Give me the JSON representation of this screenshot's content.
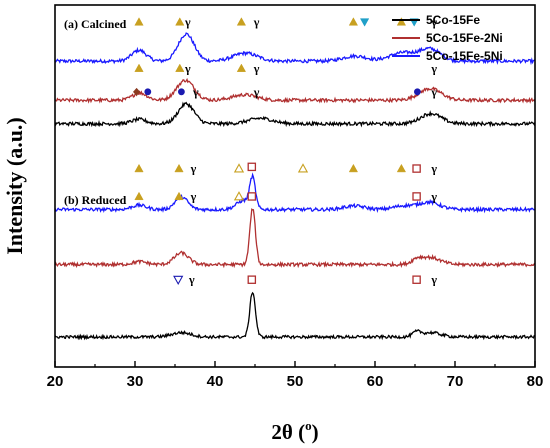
{
  "chart_data": {
    "type": "line",
    "xlabel": "2θ (°)",
    "xlabel_main": "2θ (",
    "xlabel_sup": "o",
    "xlabel_close": ")",
    "ylabel": "Intensity (a.u.)",
    "xlim": [
      20,
      80
    ],
    "xticks": [
      20,
      30,
      40,
      50,
      60,
      70,
      80
    ],
    "yticks_shown": false,
    "grid": false,
    "legend_position": "top-right",
    "panels": [
      {
        "label": "(a) Calcined"
      },
      {
        "label": "(b) Reduced"
      }
    ],
    "legend": [
      {
        "name": "5Co-15Fe",
        "color": "#000000"
      },
      {
        "name": "5Co-15Fe-2Ni",
        "color": "#b03030"
      },
      {
        "name": "5Co-15Fe-5Ni",
        "color": "#1a1aff"
      }
    ],
    "series": [
      {
        "name": "5Co-15Fe-5Ni",
        "panel": "calcined",
        "color": "#1a1aff",
        "baseline": 0.845,
        "noise": 0.0045,
        "peaks": [
          [
            30.5,
            0.03,
            0.9
          ],
          [
            36.4,
            0.075,
            1.0
          ],
          [
            43.8,
            0.022,
            1.5
          ],
          [
            57.5,
            0.014,
            1.5
          ],
          [
            63.3,
            0.022,
            1.5
          ],
          [
            66.5,
            0.02,
            1.4
          ],
          [
            67.2,
            0.015,
            1.2
          ]
        ],
        "markers": [
          {
            "x": 30.5,
            "symbol": "triangle-up",
            "color": "#c8a020"
          },
          {
            "x": 35.6,
            "symbol": "triangle-up",
            "color": "#c8a020"
          },
          {
            "x": 36.6,
            "symbol": "gamma"
          },
          {
            "x": 43.3,
            "symbol": "triangle-up",
            "color": "#c8a020"
          },
          {
            "x": 45.2,
            "symbol": "gamma"
          },
          {
            "x": 57.3,
            "symbol": "triangle-up",
            "color": "#c8a020"
          },
          {
            "x": 58.7,
            "symbol": "triangle-down",
            "color": "#20a0c8"
          },
          {
            "x": 63.3,
            "symbol": "triangle-up",
            "color": "#c8a020"
          },
          {
            "x": 64.9,
            "symbol": "triangle-down",
            "color": "#20a0c8"
          },
          {
            "x": 67.4,
            "symbol": "gamma"
          }
        ]
      },
      {
        "name": "5Co-15Fe-2Ni",
        "panel": "calcined",
        "color": "#b03030",
        "baseline": 0.737,
        "noise": 0.0045,
        "peaks": [
          [
            30.6,
            0.02,
            0.9
          ],
          [
            36.3,
            0.055,
            1.1
          ],
          [
            43.7,
            0.015,
            1.5
          ],
          [
            66.9,
            0.032,
            1.4
          ]
        ],
        "markers": [
          {
            "x": 30.5,
            "symbol": "triangle-up",
            "color": "#c8a020"
          },
          {
            "x": 35.6,
            "symbol": "triangle-up",
            "color": "#c8a020"
          },
          {
            "x": 36.6,
            "symbol": "gamma"
          },
          {
            "x": 43.3,
            "symbol": "triangle-up",
            "color": "#c8a020"
          },
          {
            "x": 45.2,
            "symbol": "gamma"
          },
          {
            "x": 67.4,
            "symbol": "gamma"
          }
        ]
      },
      {
        "name": "5Co-15Fe",
        "panel": "calcined",
        "color": "#000000",
        "baseline": 0.672,
        "noise": 0.0045,
        "peaks": [
          [
            30.5,
            0.012,
            0.9
          ],
          [
            36.4,
            0.055,
            1.0
          ],
          [
            45.7,
            0.015,
            1.5
          ],
          [
            67.0,
            0.028,
            1.3
          ]
        ],
        "markers": [
          {
            "x": 30.2,
            "symbol": "diamond",
            "color": "#8a3a20"
          },
          {
            "x": 31.6,
            "symbol": "circle",
            "color": "#1a1ab0"
          },
          {
            "x": 35.8,
            "symbol": "circle",
            "color": "#1a1ab0"
          },
          {
            "x": 37.6,
            "symbol": "gamma"
          },
          {
            "x": 45.2,
            "symbol": "gamma"
          },
          {
            "x": 65.3,
            "symbol": "circle",
            "color": "#1a1ab0"
          },
          {
            "x": 67.4,
            "symbol": "gamma"
          }
        ]
      },
      {
        "name": "5Co-15Fe-5Ni",
        "panel": "reduced",
        "color": "#1a1aff",
        "baseline": 0.435,
        "noise": 0.0045,
        "peaks": [
          [
            30.5,
            0.012,
            0.9
          ],
          [
            35.8,
            0.035,
            0.8
          ],
          [
            43.6,
            0.025,
            0.9
          ],
          [
            44.7,
            0.08,
            0.35
          ],
          [
            57.4,
            0.01,
            1.3
          ],
          [
            63.6,
            0.01,
            1.3
          ],
          [
            66.8,
            0.02,
            1.3
          ]
        ],
        "markers": [
          {
            "x": 30.5,
            "symbol": "triangle-up",
            "color": "#c8a020"
          },
          {
            "x": 35.5,
            "symbol": "triangle-up",
            "color": "#c8a020"
          },
          {
            "x": 37.3,
            "symbol": "gamma"
          },
          {
            "x": 43.0,
            "symbol": "triangle-open",
            "color": "#c8a020"
          },
          {
            "x": 44.6,
            "symbol": "square-open",
            "color": "#b03030"
          },
          {
            "x": 51.0,
            "symbol": "triangle-open",
            "color": "#c8a020"
          },
          {
            "x": 57.3,
            "symbol": "triangle-up",
            "color": "#c8a020"
          },
          {
            "x": 63.3,
            "symbol": "triangle-up",
            "color": "#c8a020"
          },
          {
            "x": 65.2,
            "symbol": "square-open",
            "color": "#b03030"
          },
          {
            "x": 67.4,
            "symbol": "gamma"
          }
        ]
      },
      {
        "name": "5Co-15Fe-2Ni",
        "panel": "reduced",
        "color": "#b03030",
        "baseline": 0.283,
        "noise": 0.0045,
        "peaks": [
          [
            30.6,
            0.008,
            0.9
          ],
          [
            35.8,
            0.032,
            0.9
          ],
          [
            44.7,
            0.155,
            0.35
          ],
          [
            65.2,
            0.01,
            0.6
          ],
          [
            66.8,
            0.02,
            1.3
          ]
        ],
        "markers": [
          {
            "x": 30.5,
            "symbol": "triangle-up",
            "color": "#c8a020"
          },
          {
            "x": 35.5,
            "symbol": "triangle-up",
            "color": "#c8a020"
          },
          {
            "x": 37.3,
            "symbol": "gamma"
          },
          {
            "x": 43.0,
            "symbol": "triangle-open",
            "color": "#c8a020"
          },
          {
            "x": 44.6,
            "symbol": "square-open",
            "color": "#b03030"
          },
          {
            "x": 65.2,
            "symbol": "square-open",
            "color": "#b03030"
          },
          {
            "x": 67.4,
            "symbol": "gamma"
          }
        ]
      },
      {
        "name": "5Co-15Fe",
        "panel": "reduced",
        "color": "#000000",
        "baseline": 0.083,
        "noise": 0.004,
        "peaks": [
          [
            35.8,
            0.012,
            1.2
          ],
          [
            44.7,
            0.125,
            0.35
          ],
          [
            65.2,
            0.012,
            0.5
          ],
          [
            67.0,
            0.012,
            1.2
          ]
        ],
        "markers": [
          {
            "x": 35.4,
            "symbol": "triangle-down-open",
            "color": "#1a1ab0"
          },
          {
            "x": 37.1,
            "symbol": "gamma"
          },
          {
            "x": 44.6,
            "symbol": "square-open",
            "color": "#b03030"
          },
          {
            "x": 65.2,
            "symbol": "square-open",
            "color": "#b03030"
          },
          {
            "x": 67.4,
            "symbol": "gamma"
          }
        ]
      }
    ]
  }
}
